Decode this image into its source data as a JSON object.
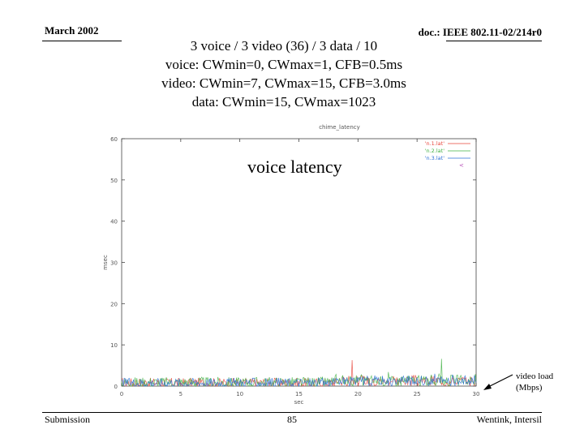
{
  "header": {
    "date": "March 2002",
    "doc_id": "doc.: IEEE 802.11-02/214r0"
  },
  "title_lines": [
    "3 voice / 3 video (36) / 3 data / 10",
    "voice: CWmin=0, CWmax=1, CFB=0.5ms",
    "video: CWmin=7, CWmax=15, CFB=3.0ms",
    "data: CWmin=15, CWmax=1023"
  ],
  "overlay_label": "voice latency",
  "callout": {
    "line1": "video load",
    "line2": "(Mbps)"
  },
  "footer": {
    "left": "Submission",
    "page": "85",
    "right": "Wentink, Intersil"
  },
  "chart_data": {
    "type": "line",
    "title": "chime_latency",
    "xlabel": "sec",
    "ylabel": "msec",
    "xlim": [
      0,
      30
    ],
    "ylim": [
      0,
      60
    ],
    "xticks": [
      0,
      5,
      10,
      15,
      20,
      25,
      30
    ],
    "yticks": [
      0,
      10,
      20,
      30,
      40,
      50,
      60
    ],
    "grid": false,
    "legend_position": "top-right",
    "series": [
      {
        "name": "'n.1.lat'",
        "color": "#e8443a",
        "mean": 0.8,
        "jitter": 1.2,
        "spikes": [
          [
            19.5,
            6.3
          ],
          [
            23.0,
            2.4
          ]
        ]
      },
      {
        "name": "'n.2.lat'",
        "color": "#3fb043",
        "mean": 0.9,
        "jitter": 1.3,
        "spikes": [
          [
            27.1,
            6.6
          ],
          [
            22.6,
            3.4
          ]
        ]
      },
      {
        "name": "'n.3.lat'",
        "color": "#2a6fd6",
        "mean": 0.8,
        "jitter": 1.2,
        "spikes": [
          [
            26.5,
            3.0
          ],
          [
            28.0,
            2.8
          ]
        ]
      }
    ],
    "extra_legend_glyph": "<",
    "extra_legend_color": "#b040b0"
  }
}
